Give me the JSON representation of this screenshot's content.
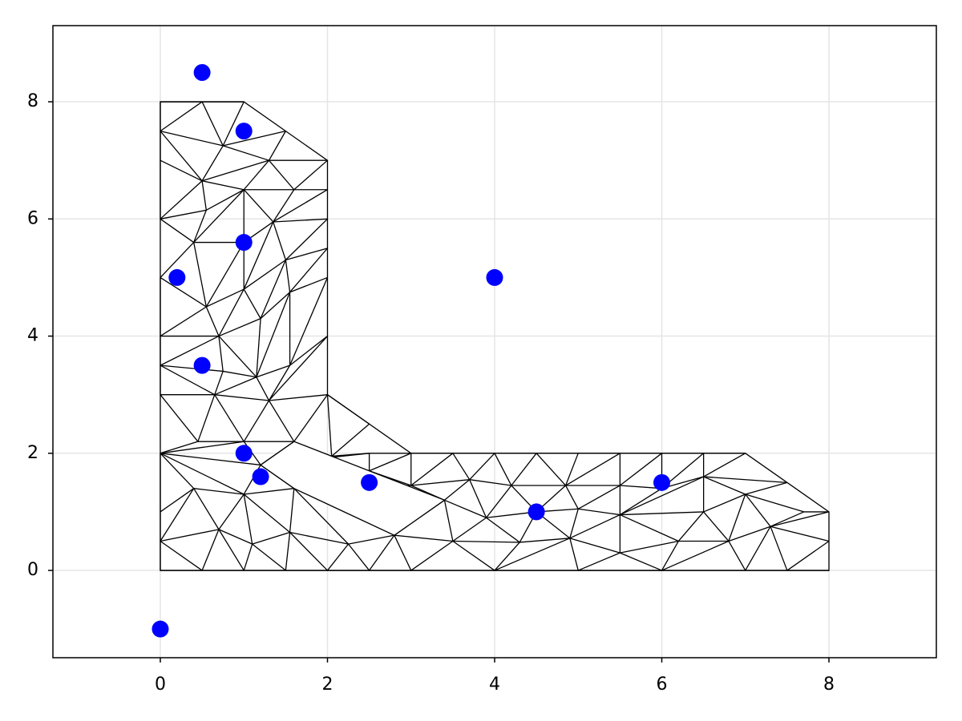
{
  "chart_data": {
    "type": "scatter",
    "x": [
      0.5,
      1,
      1,
      0.2,
      4,
      0.5,
      1,
      1.2,
      2.5,
      6,
      4.5,
      0
    ],
    "y": [
      8.5,
      7.5,
      5.6,
      5,
      5,
      3.5,
      2,
      1.6,
      1.5,
      1.5,
      1,
      -1
    ],
    "color": "#0000ff",
    "xlim": [
      -1.285,
      9.285
    ],
    "ylim": [
      -1.49,
      9.3
    ],
    "xticks": [
      0,
      2,
      4,
      6,
      8
    ],
    "yticks": [
      0,
      2,
      4,
      6,
      8
    ],
    "grid": true,
    "mesh": {
      "color": "#000000",
      "boundary": [
        [
          0,
          0
        ],
        [
          8,
          0
        ],
        [
          8,
          1
        ],
        [
          7,
          2
        ],
        [
          3,
          2
        ],
        [
          2,
          3
        ],
        [
          2,
          7
        ],
        [
          1,
          8
        ],
        [
          0,
          8
        ],
        [
          0,
          0
        ]
      ],
      "hole": [
        [
          1.6,
          2.2
        ],
        [
          2.5,
          1.7
        ],
        [
          3.4,
          1.2
        ],
        [
          2.8,
          0.6
        ],
        [
          1.6,
          1.4
        ],
        [
          1.2,
          1.8
        ],
        [
          1.6,
          2.2
        ]
      ],
      "rows": [
        [
          [
            0,
            0
          ],
          [
            0.5,
            0
          ],
          [
            1,
            0
          ],
          [
            1.5,
            0
          ],
          [
            2,
            0
          ],
          [
            2.5,
            0
          ],
          [
            3,
            0
          ],
          [
            4,
            0
          ],
          [
            5,
            0
          ],
          [
            6,
            0
          ],
          [
            7,
            0
          ],
          [
            7.5,
            0
          ],
          [
            8,
            0
          ]
        ],
        [
          [
            0,
            0.5
          ],
          [
            0.7,
            0.7
          ],
          [
            1.1,
            0.45
          ],
          [
            1.55,
            0.65
          ],
          [
            2.25,
            0.45
          ],
          [
            2.8,
            0.6
          ],
          [
            3.5,
            0.5
          ],
          [
            4.3,
            0.48
          ],
          [
            4.9,
            0.55
          ],
          [
            5.5,
            0.3
          ],
          [
            6.2,
            0.5
          ],
          [
            6.8,
            0.5
          ],
          [
            7.3,
            0.75
          ],
          [
            8,
            0.5
          ]
        ],
        [
          [
            0,
            1
          ],
          [
            0.4,
            1.4
          ],
          [
            1,
            1.3
          ],
          [
            1.6,
            1.4
          ],
          [
            3.4,
            1.2
          ],
          [
            3.9,
            0.9
          ],
          [
            4.5,
            1
          ],
          [
            5,
            1.05
          ],
          [
            5.5,
            0.95
          ],
          [
            6.5,
            1
          ],
          [
            7,
            1.3
          ],
          [
            7.7,
            1
          ],
          [
            8,
            1
          ]
        ],
        [
          [
            0,
            2
          ],
          [
            1.2,
            1.8
          ],
          [
            2.5,
            1.7
          ],
          [
            3,
            1.45
          ],
          [
            3.7,
            1.55
          ],
          [
            4.2,
            1.45
          ],
          [
            4.85,
            1.45
          ],
          [
            5.5,
            1.45
          ],
          [
            6,
            1.4
          ],
          [
            6.5,
            1.6
          ],
          [
            7.5,
            1.5
          ]
        ],
        [
          [
            0.45,
            2.2
          ],
          [
            1,
            2.2
          ],
          [
            1.6,
            2.2
          ],
          [
            2.05,
            1.95
          ],
          [
            2.5,
            2
          ],
          [
            3,
            2
          ],
          [
            3.5,
            2
          ],
          [
            4,
            2
          ],
          [
            4.5,
            2
          ],
          [
            5,
            2
          ],
          [
            5.5,
            2
          ],
          [
            6,
            2
          ],
          [
            6.5,
            2
          ],
          [
            7,
            2
          ]
        ],
        [
          [
            0,
            3
          ],
          [
            0.65,
            3
          ],
          [
            1.3,
            2.9
          ],
          [
            2,
            3
          ],
          [
            2.5,
            2.5
          ]
        ],
        [
          [
            0,
            3.5
          ],
          [
            0.75,
            3.4
          ],
          [
            1.15,
            3.3
          ],
          [
            1.55,
            3.5
          ],
          [
            2,
            4
          ]
        ],
        [
          [
            0,
            4
          ],
          [
            0.7,
            4
          ],
          [
            1.2,
            4.3
          ],
          [
            1.55,
            4.75
          ],
          [
            2,
            5
          ]
        ],
        [
          [
            0,
            5
          ],
          [
            0.55,
            4.5
          ],
          [
            1,
            4.8
          ],
          [
            1.5,
            5.3
          ],
          [
            2,
            5.5
          ]
        ],
        [
          [
            0.4,
            5.6
          ],
          [
            1,
            5.6
          ],
          [
            1.35,
            5.95
          ],
          [
            2,
            6
          ]
        ],
        [
          [
            0,
            6
          ],
          [
            0.55,
            6.15
          ],
          [
            1,
            6.5
          ],
          [
            1.6,
            6.5
          ],
          [
            2,
            6.5
          ]
        ],
        [
          [
            0,
            7
          ],
          [
            0.5,
            6.65
          ],
          [
            1.3,
            7
          ],
          [
            2,
            7
          ]
        ],
        [
          [
            0,
            7.5
          ],
          [
            0.75,
            7.25
          ],
          [
            1.5,
            7.5
          ]
        ],
        [
          [
            0,
            8
          ],
          [
            0.5,
            8
          ],
          [
            1,
            8
          ]
        ]
      ]
    }
  }
}
